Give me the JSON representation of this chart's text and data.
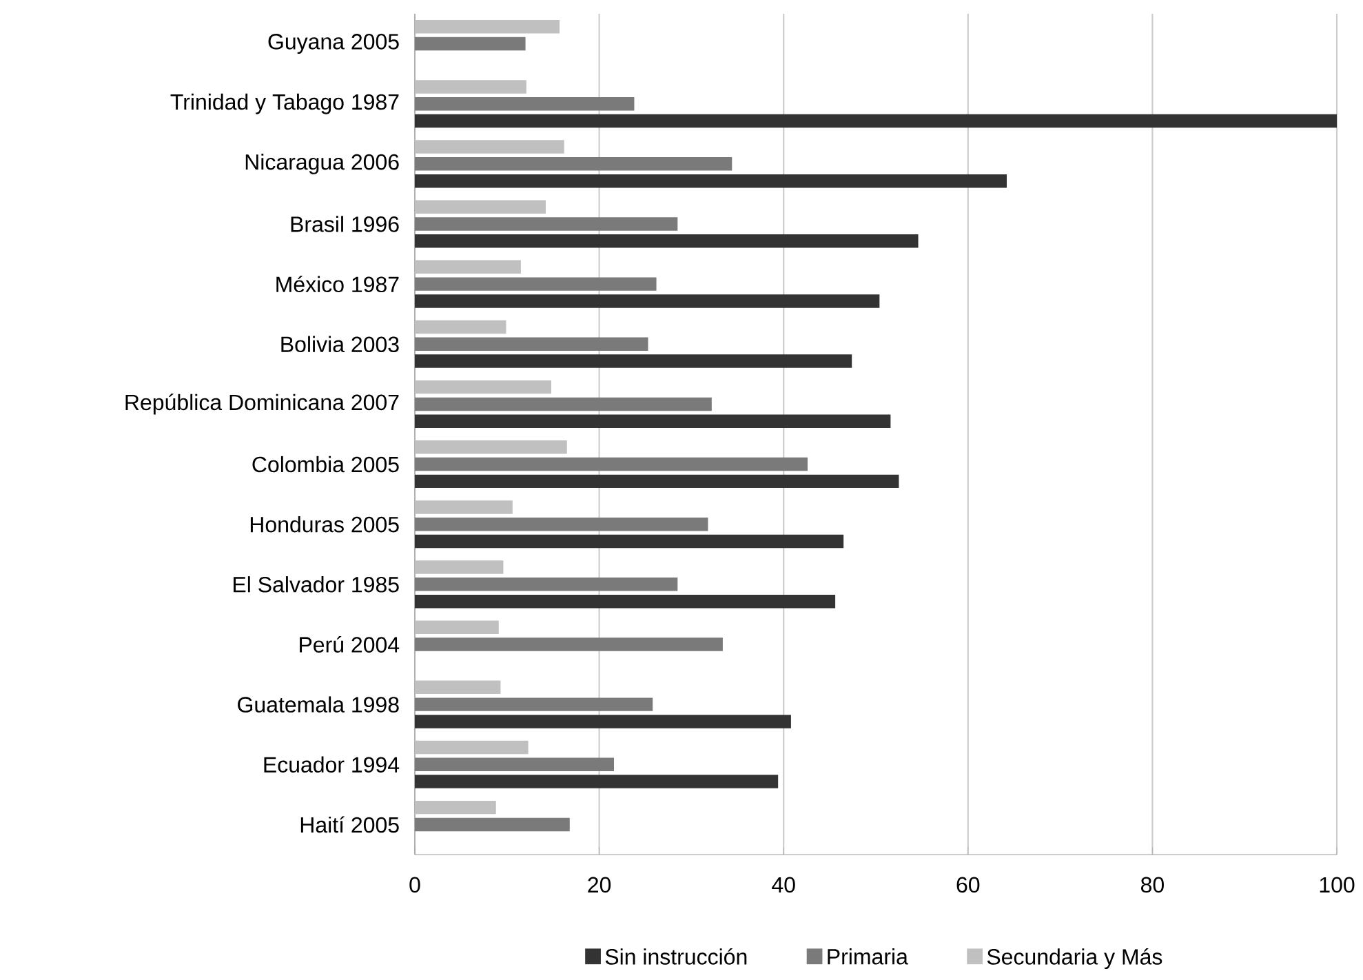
{
  "chart_data": {
    "type": "bar",
    "orientation": "horizontal",
    "categories": [
      "Guyana 2005",
      "Trinidad y Tabago 1987",
      "Nicaragua 2006",
      "Brasil 1996",
      "México 1987",
      "Bolivia 2003",
      "República Dominicana 2007",
      "Colombia 2005",
      "Honduras 2005",
      "El Salvador 1985",
      "Perú 2004",
      "Guatemala 1998",
      "Ecuador 1994",
      "Haití 2005"
    ],
    "series": [
      {
        "name": "Sin instrucción",
        "color": "#333333",
        "values": [
          null,
          100,
          64.2,
          54.6,
          50.4,
          47.4,
          51.6,
          52.5,
          46.5,
          45.6,
          null,
          40.8,
          39.4,
          null
        ]
      },
      {
        "name": "Primaria",
        "color": "#7a7a7a",
        "values": [
          12.0,
          23.8,
          34.4,
          28.5,
          26.2,
          25.3,
          32.2,
          42.6,
          31.8,
          28.5,
          33.4,
          25.8,
          21.6,
          16.8
        ]
      },
      {
        "name": "Secundaria y Más",
        "color": "#c0c0c0",
        "values": [
          15.7,
          12.1,
          16.2,
          14.2,
          11.5,
          9.9,
          14.8,
          16.5,
          10.6,
          9.6,
          9.1,
          9.3,
          12.3,
          8.8
        ]
      }
    ],
    "xlim": [
      0,
      100
    ],
    "xticks": [
      0,
      20,
      40,
      60,
      80,
      100
    ],
    "grid": "x",
    "legend": "bottom"
  }
}
